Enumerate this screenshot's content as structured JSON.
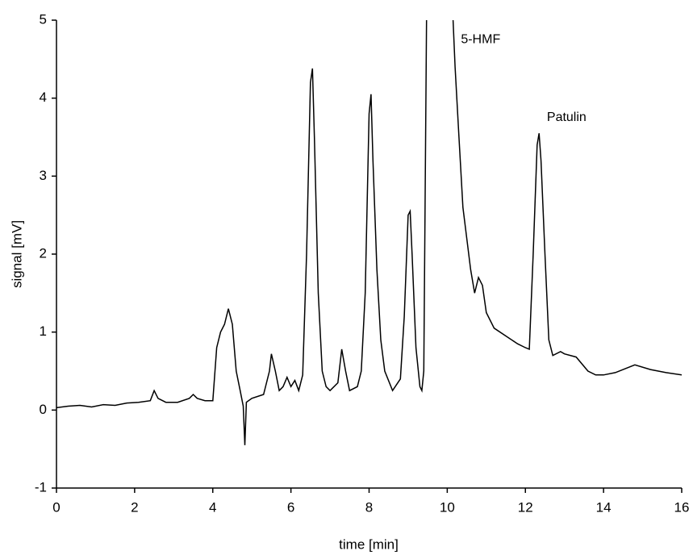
{
  "chart_data": {
    "type": "line",
    "xlabel": "time [min]",
    "ylabel": "signal [mV]",
    "x": [
      0,
      0.3,
      0.6,
      0.9,
      1.2,
      1.5,
      1.8,
      2.1,
      2.4,
      2.5,
      2.6,
      2.8,
      3.1,
      3.4,
      3.5,
      3.6,
      3.8,
      4.0,
      4.1,
      4.2,
      4.3,
      4.4,
      4.5,
      4.6,
      4.7,
      4.78,
      4.82,
      4.86,
      5.0,
      5.3,
      5.45,
      5.5,
      5.6,
      5.7,
      5.8,
      5.9,
      6.0,
      6.1,
      6.2,
      6.3,
      6.4,
      6.5,
      6.55,
      6.6,
      6.7,
      6.8,
      6.9,
      7.0,
      7.2,
      7.3,
      7.4,
      7.5,
      7.7,
      7.8,
      7.9,
      8.0,
      8.05,
      8.1,
      8.2,
      8.3,
      8.4,
      8.6,
      8.8,
      8.9,
      9.0,
      9.05,
      9.1,
      9.2,
      9.3,
      9.35,
      9.4,
      9.47,
      9.8,
      10.15,
      10.2,
      10.3,
      10.4,
      10.5,
      10.6,
      10.7,
      10.8,
      10.9,
      11.0,
      11.2,
      11.5,
      11.8,
      12.0,
      12.1,
      12.2,
      12.3,
      12.35,
      12.4,
      12.5,
      12.6,
      12.7,
      12.9,
      13.0,
      13.3,
      13.6,
      13.8,
      14.0,
      14.3,
      14.8,
      15.2,
      15.6,
      16.0
    ],
    "series": [
      {
        "name": "signal",
        "color": "#000000",
        "values": [
          0.03,
          0.05,
          0.06,
          0.04,
          0.07,
          0.06,
          0.09,
          0.1,
          0.12,
          0.25,
          0.15,
          0.1,
          0.1,
          0.15,
          0.2,
          0.15,
          0.12,
          0.12,
          0.8,
          1.0,
          1.1,
          1.3,
          1.1,
          0.5,
          0.25,
          0.05,
          -0.45,
          0.1,
          0.15,
          0.2,
          0.5,
          0.72,
          0.5,
          0.25,
          0.3,
          0.42,
          0.3,
          0.38,
          0.25,
          0.45,
          2.0,
          4.2,
          4.38,
          3.5,
          1.5,
          0.5,
          0.3,
          0.25,
          0.35,
          0.78,
          0.5,
          0.25,
          0.3,
          0.5,
          1.5,
          3.8,
          4.05,
          3.2,
          1.8,
          0.9,
          0.5,
          0.25,
          0.4,
          1.2,
          2.5,
          2.55,
          2.0,
          0.8,
          0.3,
          0.25,
          0.5,
          5,
          null,
          5,
          4.4,
          3.5,
          2.6,
          2.2,
          1.8,
          1.5,
          1.7,
          1.6,
          1.25,
          1.05,
          0.95,
          0.85,
          0.8,
          0.78,
          2.0,
          3.4,
          3.55,
          3.2,
          2.0,
          0.9,
          0.7,
          0.75,
          0.72,
          0.68,
          0.5,
          0.45,
          0.45,
          0.48,
          0.58,
          0.52,
          0.48,
          0.45
        ]
      }
    ],
    "annotations": [
      "5-HMF",
      "Patulin"
    ],
    "xlim": [
      0,
      16
    ],
    "xticks": [
      0,
      2,
      4,
      6,
      8,
      10,
      12,
      14,
      16
    ],
    "ylim": [
      -1,
      5
    ],
    "yticks": [
      -1,
      0,
      1,
      2,
      3,
      4,
      5
    ],
    "grid": false
  }
}
